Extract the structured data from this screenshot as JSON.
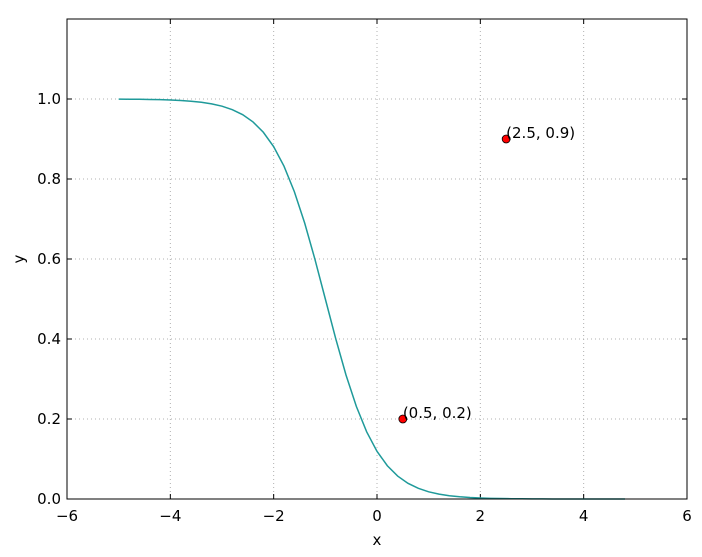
{
  "chart_data": {
    "type": "line",
    "xlabel": "x",
    "ylabel": "y",
    "xlim": [
      -6,
      6
    ],
    "ylim": [
      0,
      1.2
    ],
    "xticks": [
      {
        "value": -6,
        "label": "−6"
      },
      {
        "value": -4,
        "label": "−4"
      },
      {
        "value": -2,
        "label": "−2"
      },
      0,
      2,
      4,
      6
    ],
    "yticks": [
      {
        "value": 0,
        "label": "0.0"
      },
      0.2,
      0.4,
      0.6,
      0.8,
      {
        "value": 1,
        "label": "1.0"
      }
    ],
    "grid": true,
    "series": [
      {
        "color": "#1f9a9a",
        "x": [
          -5,
          -4.8,
          -4.6,
          -4.4,
          -4.2,
          -4,
          -3.8,
          -3.6,
          -3.4,
          -3.2,
          -3,
          -2.8,
          -2.6,
          -2.4,
          -2.2,
          -2,
          -1.8,
          -1.6,
          -1.4,
          -1.2,
          -1,
          -0.8,
          -0.6,
          -0.4,
          -0.2,
          0,
          0.2,
          0.4,
          0.6,
          0.8,
          1,
          1.2,
          1.4,
          1.6,
          1.8,
          2,
          2.2,
          2.4,
          2.6,
          2.8,
          3,
          3.2,
          3.4,
          3.6,
          3.8,
          4,
          4.2,
          4.4,
          4.6,
          4.8
        ],
        "values": [
          0.9997,
          0.9995,
          0.9993,
          0.9989,
          0.9983,
          0.9975,
          0.9963,
          0.9945,
          0.9918,
          0.9879,
          0.982,
          0.9734,
          0.9608,
          0.9427,
          0.9168,
          0.8808,
          0.832,
          0.7685,
          0.69,
          0.5987,
          0.5,
          0.4013,
          0.31,
          0.2315,
          0.168,
          0.1192,
          0.0832,
          0.0573,
          0.0392,
          0.0266,
          0.018,
          0.0121,
          0.0082,
          0.0055,
          0.0037,
          0.0025,
          0.0017,
          0.0011,
          0.0007,
          0.0005,
          0.0003,
          0.0002,
          0.0001,
          0.0001,
          0.0001,
          0,
          0,
          0,
          0,
          0
        ]
      }
    ],
    "scatter": {
      "color": "#ff0000",
      "x": [
        0.5,
        2.5
      ],
      "y": [
        0.2,
        0.9
      ]
    },
    "annotations": [
      "(0.5, 0.2)",
      "(2.5, 0.9)"
    ]
  }
}
